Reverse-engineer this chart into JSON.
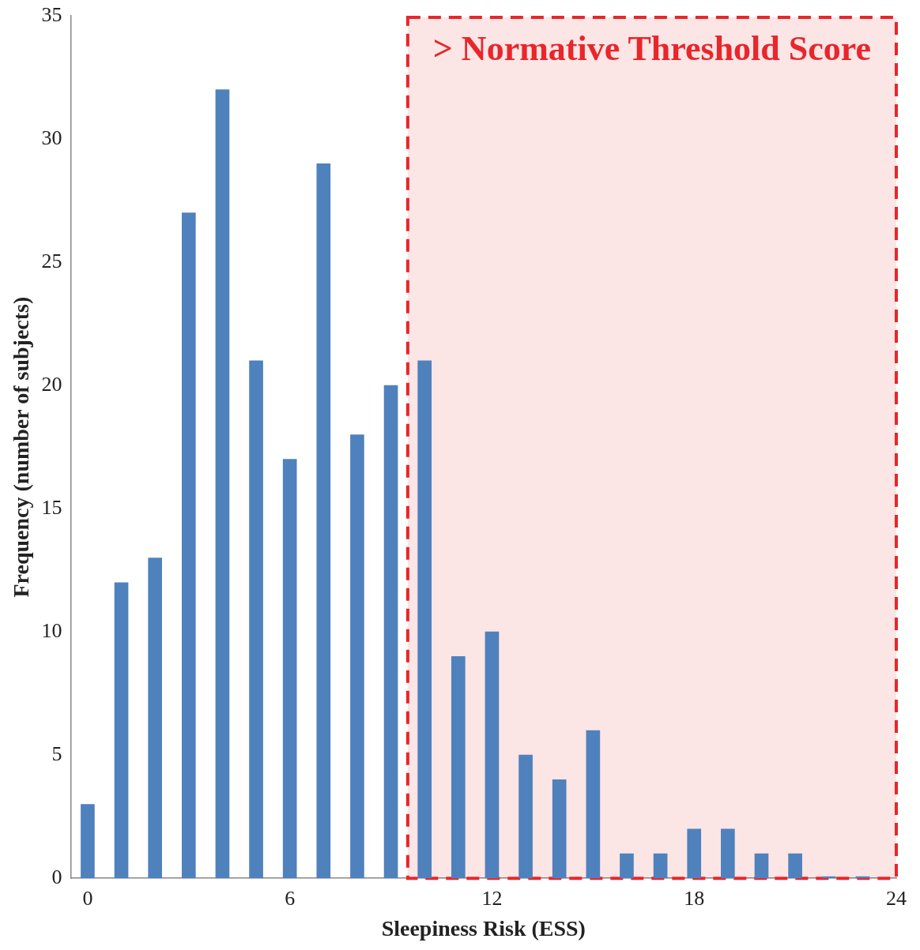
{
  "chart_data": {
    "type": "bar",
    "xlabel": "Sleepiness Risk (ESS)",
    "ylabel": "Frequency (number of subjects)",
    "x": [
      0,
      1,
      2,
      3,
      4,
      5,
      6,
      7,
      8,
      9,
      10,
      11,
      12,
      13,
      14,
      15,
      16,
      17,
      18,
      19,
      20,
      21,
      22,
      23
    ],
    "values": [
      3,
      12,
      13,
      27,
      32,
      21,
      17,
      29,
      18,
      20,
      21,
      9,
      10,
      5,
      4,
      6,
      1,
      1,
      2,
      2,
      1,
      1,
      0,
      0
    ],
    "color": "#4f81bd",
    "xlim": [
      -0.5,
      24
    ],
    "xticks": [
      0,
      6,
      12,
      18,
      24
    ],
    "ylim": [
      0,
      35
    ],
    "yticks": [
      0,
      5,
      10,
      15,
      20,
      25,
      30,
      35
    ],
    "bands": [
      {
        "axis": "x",
        "from": 9.5,
        "to": 24,
        "label": "> Normative Threshold Score",
        "color": "#e8262b"
      }
    ],
    "grid": false,
    "legend": false
  }
}
